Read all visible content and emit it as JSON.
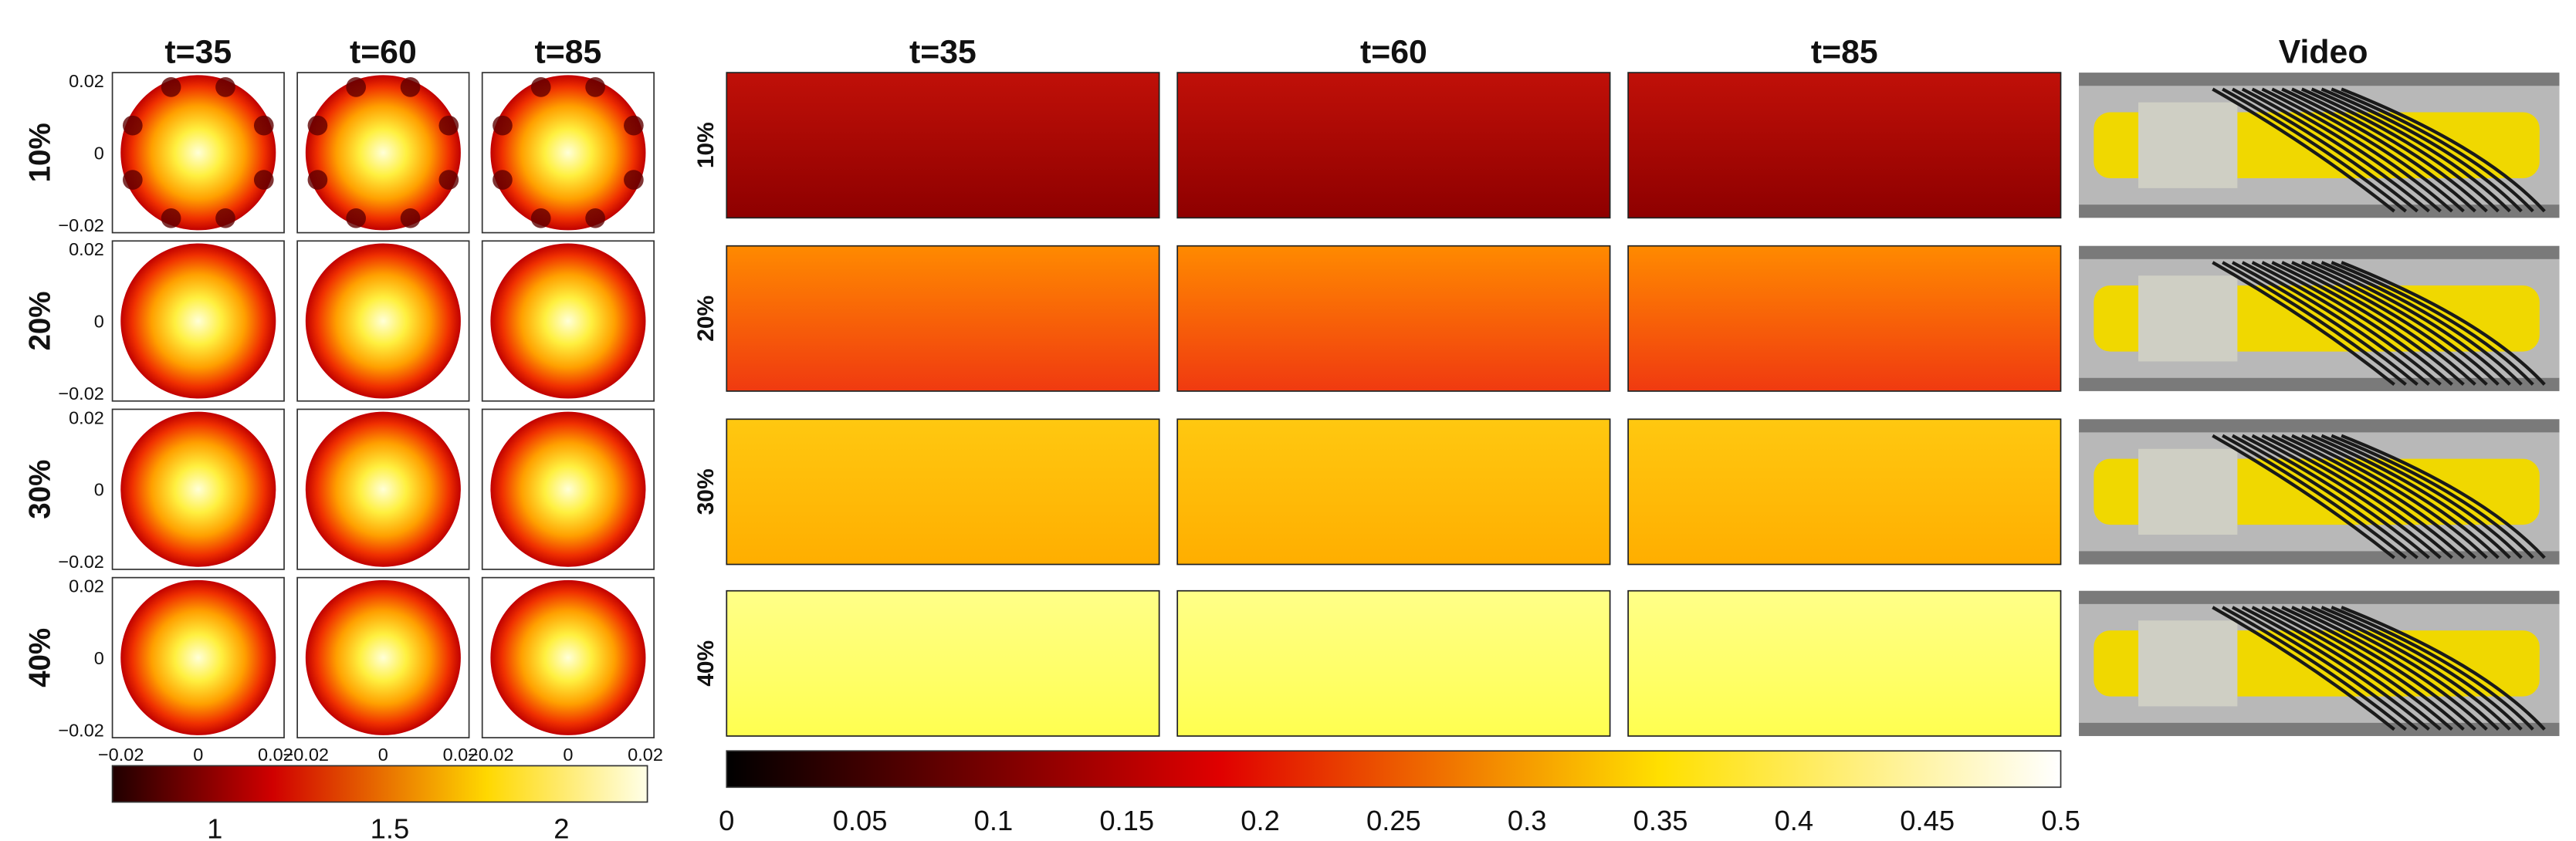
{
  "left": {
    "columns": [
      "t=35",
      "t=60",
      "t=85"
    ],
    "rows": [
      "10%",
      "20%",
      "30%",
      "40%"
    ],
    "y_ticks": [
      "0.02",
      "0",
      "−0.02"
    ],
    "x_ticks": [
      "−0.02",
      "0",
      "0.02"
    ],
    "colorbar_ticks": [
      "1",
      "1.5",
      "2"
    ]
  },
  "middle": {
    "columns": [
      "t=35",
      "t=60",
      "t=85"
    ],
    "rows": [
      "10%",
      "20%",
      "30%",
      "40%"
    ],
    "colorbar_ticks": [
      "0",
      "0.05",
      "0.1",
      "0.15",
      "0.2",
      "0.25",
      "0.3",
      "0.35",
      "0.4",
      "0.45",
      "0.5"
    ]
  },
  "video": {
    "title": "Video"
  }
}
